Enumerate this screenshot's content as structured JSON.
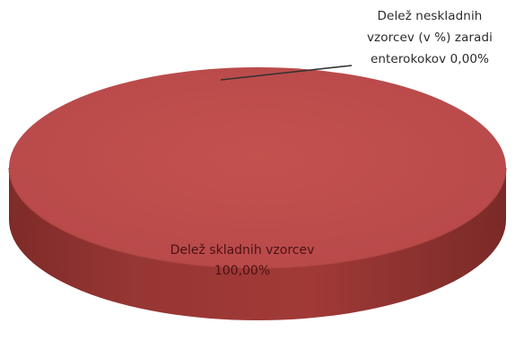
{
  "chart_data": {
    "type": "pie",
    "style": "3d",
    "categories": [
      "Delež skladnih vzorcev",
      "Delež neskladnih vzorcev (v %) zaradi enterokokov"
    ],
    "values": [
      100.0,
      0.0
    ],
    "colors": [
      "#c0504d",
      "#4f81bd"
    ],
    "data_labels": [
      {
        "lines": [
          "Delež skladnih vzorcev",
          "100,00%"
        ]
      },
      {
        "lines": [
          "Delež neskladnih",
          "vzorcev (v %) zaradi",
          "enterokokov 0,00%"
        ]
      }
    ]
  }
}
